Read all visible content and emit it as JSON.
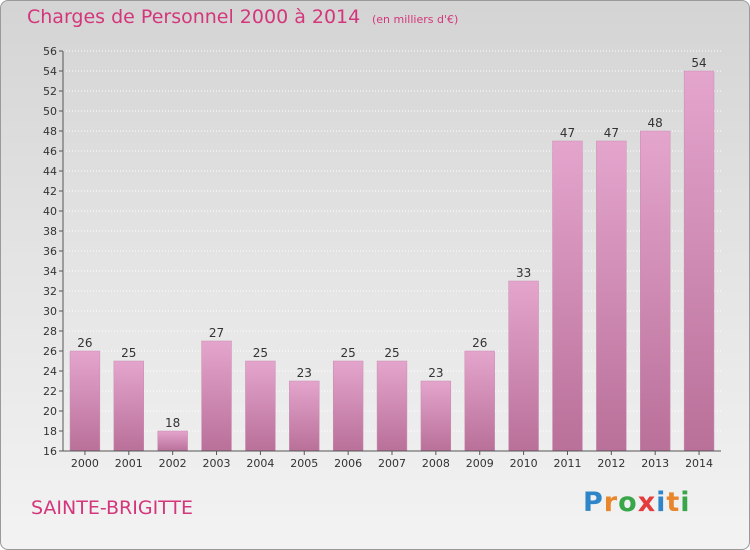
{
  "header": {
    "title": "Charges de Personnel 2000 à 2014",
    "subtitle": "(en milliers d'€)"
  },
  "footer": {
    "place": "SAINTE-BRIGITTE",
    "logo_letters": [
      "P",
      "r",
      "o",
      "x",
      "i",
      "t",
      "i"
    ],
    "logo_colors": [
      "#2e86c8",
      "#e9862b",
      "#3aa64a",
      "#e43c3c",
      "#2e86c8",
      "#e9862b",
      "#3aa64a"
    ]
  },
  "colors": {
    "bar": "#cf7fae",
    "text": "#d4367c"
  },
  "chart_data": {
    "type": "bar",
    "categories": [
      "2000",
      "2001",
      "2002",
      "2003",
      "2004",
      "2005",
      "2006",
      "2007",
      "2008",
      "2009",
      "2010",
      "2011",
      "2012",
      "2013",
      "2014"
    ],
    "values": [
      26,
      25,
      18,
      27,
      25,
      23,
      25,
      25,
      23,
      26,
      33,
      47,
      47,
      48,
      54
    ],
    "ylim": [
      16,
      56
    ],
    "yticks": [
      16,
      18,
      20,
      22,
      24,
      26,
      28,
      30,
      32,
      34,
      36,
      38,
      40,
      42,
      44,
      46,
      48,
      50,
      52,
      54,
      56
    ],
    "grid": true
  }
}
